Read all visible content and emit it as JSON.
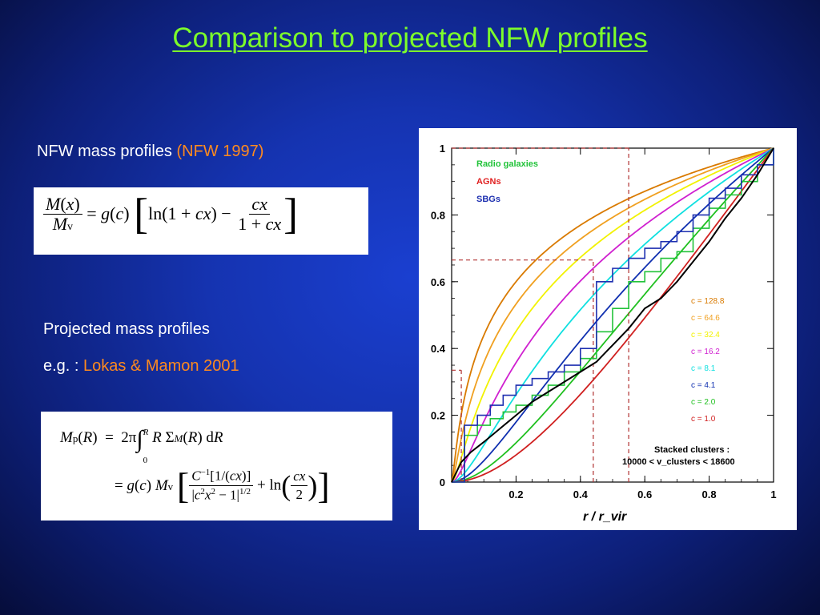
{
  "slide": {
    "title": "Comparison to projected NFW profiles",
    "nfw_label": "NFW mass profiles ",
    "nfw_ref": "(NFW 1997)",
    "proj_label": "Projected mass profiles",
    "eg_label": "e.g. : ",
    "eg_ref": "Lokas & Mamon 2001"
  },
  "equations": {
    "eq1": "M(x)/M_v = g(c) [ln(1+cx) − cx/(1+cx)]",
    "eq2_line1": "M_p(R) = 2π ∫_0^R R Σ_M(R) dR",
    "eq2_line2": "= g(c) M_v [ C^−1[1/(cx)] / |c^2x^2 − 1|^1/2 + ln(cx/2) ]"
  },
  "chart_data": {
    "type": "line",
    "xlabel": "r / r_vir",
    "ylabel": "",
    "xlim": [
      0,
      1
    ],
    "ylim": [
      0,
      1
    ],
    "x_ticks": [
      "0.2",
      "0.4",
      "0.6",
      "0.8",
      "1"
    ],
    "y_ticks": [
      "0",
      "0.2",
      "0.4",
      "0.6",
      "0.8",
      "1"
    ],
    "legend_top": [
      {
        "label": "Radio galaxies",
        "color": "#22c33a"
      },
      {
        "label": "AGNs",
        "color": "#e02020"
      },
      {
        "label": "SBGs",
        "color": "#1d2fb0"
      }
    ],
    "nfw_curves": [
      {
        "label": "c = 128.8",
        "c": 128.8,
        "color": "#d97a00"
      },
      {
        "label": "c = 64.6",
        "c": 64.6,
        "color": "#f0a020"
      },
      {
        "label": "c = 32.4",
        "c": 32.4,
        "color": "#f2f200"
      },
      {
        "label": "c = 16.2",
        "c": 16.2,
        "color": "#d020d0"
      },
      {
        "label": "c = 8.1",
        "c": 8.1,
        "color": "#10e0e0"
      },
      {
        "label": "c = 4.1",
        "c": 4.1,
        "color": "#1030b0"
      },
      {
        "label": "c = 2.0",
        "c": 2.0,
        "color": "#20c020"
      },
      {
        "label": "c = 1.0",
        "c": 1.0,
        "color": "#d02020"
      }
    ],
    "annotation_title": "Stacked clusters :",
    "annotation_range": "10000 < v_clusters < 18600",
    "guide_lines": [
      {
        "x": 0.03,
        "y": 0.335,
        "color": "#b03030"
      },
      {
        "x": 0.44,
        "y": 0.665,
        "color": "#b03030"
      },
      {
        "x": 0.55,
        "y": 1.0,
        "color": "#b03030"
      }
    ],
    "series": [
      {
        "name": "Radio galaxies",
        "color": "#22c33a",
        "x": [
          0,
          0.04,
          0.08,
          0.12,
          0.16,
          0.2,
          0.25,
          0.3,
          0.35,
          0.4,
          0.45,
          0.5,
          0.55,
          0.6,
          0.65,
          0.7,
          0.75,
          0.8,
          0.85,
          0.9,
          0.95,
          1.0
        ],
        "y": [
          0,
          0.14,
          0.17,
          0.19,
          0.21,
          0.23,
          0.26,
          0.29,
          0.33,
          0.37,
          0.45,
          0.52,
          0.6,
          0.63,
          0.67,
          0.69,
          0.76,
          0.82,
          0.86,
          0.9,
          0.95,
          1.0
        ]
      },
      {
        "name": "SBGs",
        "color": "#1d2fb0",
        "x": [
          0,
          0.04,
          0.08,
          0.12,
          0.16,
          0.2,
          0.25,
          0.3,
          0.35,
          0.4,
          0.45,
          0.5,
          0.55,
          0.6,
          0.65,
          0.7,
          0.75,
          0.8,
          0.85,
          0.9,
          0.95,
          1.0
        ],
        "y": [
          0,
          0.17,
          0.2,
          0.23,
          0.26,
          0.29,
          0.31,
          0.33,
          0.35,
          0.4,
          0.6,
          0.64,
          0.67,
          0.7,
          0.72,
          0.75,
          0.8,
          0.85,
          0.88,
          0.92,
          0.95,
          1.0
        ]
      },
      {
        "name": "Stacked clusters",
        "color": "#000000",
        "x": [
          0,
          0.03,
          0.06,
          0.1,
          0.15,
          0.2,
          0.25,
          0.3,
          0.35,
          0.4,
          0.45,
          0.5,
          0.55,
          0.6,
          0.65,
          0.7,
          0.75,
          0.8,
          0.85,
          0.9,
          0.95,
          1.0
        ],
        "y": [
          0,
          0.06,
          0.09,
          0.12,
          0.16,
          0.2,
          0.24,
          0.27,
          0.3,
          0.33,
          0.36,
          0.41,
          0.46,
          0.52,
          0.55,
          0.6,
          0.66,
          0.72,
          0.79,
          0.85,
          0.92,
          1.0
        ]
      }
    ]
  }
}
